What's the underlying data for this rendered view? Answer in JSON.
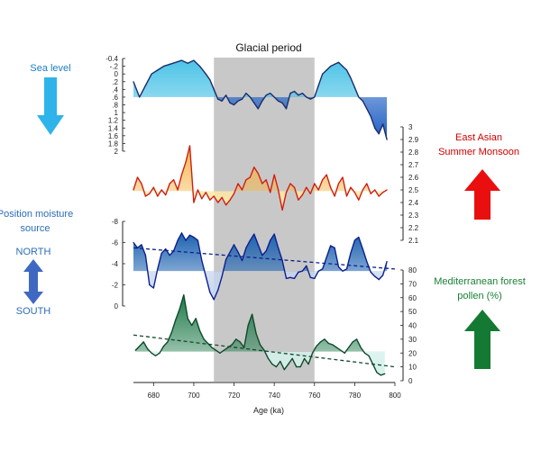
{
  "chart_data": {
    "type": "line",
    "shaded_region": {
      "label": "Glacial period",
      "x_range": [
        710,
        760
      ]
    },
    "x_axis": {
      "label": "Age (ka)",
      "range": [
        670,
        800
      ],
      "ticks": [
        680,
        700,
        720,
        740,
        760,
        780,
        800
      ]
    },
    "panels": [
      {
        "id": "sea-level",
        "title": "Sea level",
        "side": "left",
        "axis": {
          "side": "left",
          "range": [
            -0.4,
            2.0
          ],
          "inverted": true,
          "tick_labels": [
            "-0.4",
            "-.2",
            "0",
            ".2",
            ".4",
            ".6",
            ".8",
            "1",
            "1.2",
            "1.4",
            "1.6",
            "1.8",
            "2"
          ]
        },
        "baseline": 0.6,
        "colors": {
          "above": "#4cc3e6",
          "below": "#1f5fc4",
          "line": "#1a2d6b"
        },
        "series": {
          "x": [
            670,
            673,
            676,
            679,
            682,
            685,
            688,
            691,
            694,
            697,
            700,
            703,
            706,
            708,
            710,
            712,
            714,
            716,
            718,
            720,
            722,
            724,
            726,
            728,
            730,
            732,
            734,
            736,
            738,
            740,
            742,
            744,
            746,
            748,
            750,
            752,
            754,
            756,
            758,
            760,
            762,
            764,
            766,
            768,
            770,
            772,
            774,
            776,
            778,
            780,
            782,
            784,
            786,
            788,
            790,
            792,
            794,
            796
          ],
          "y": [
            0.2,
            0.6,
            0.3,
            0.0,
            -0.1,
            -0.2,
            -0.25,
            -0.3,
            -0.35,
            -0.28,
            -0.35,
            -0.2,
            0.0,
            0.15,
            0.4,
            0.65,
            0.7,
            0.55,
            0.75,
            0.8,
            0.7,
            0.65,
            0.5,
            0.6,
            0.75,
            0.9,
            0.7,
            0.55,
            0.5,
            0.6,
            0.7,
            0.75,
            0.9,
            0.5,
            0.45,
            0.55,
            0.5,
            0.6,
            0.65,
            0.6,
            0.3,
            0.0,
            -0.1,
            -0.2,
            -0.25,
            -0.3,
            -0.2,
            -0.1,
            0.1,
            0.35,
            0.6,
            0.7,
            0.9,
            1.1,
            1.4,
            1.55,
            1.3,
            1.7
          ]
        }
      },
      {
        "id": "monsoon",
        "title": "East Asian Summer Monsoon",
        "side": "right",
        "axis": {
          "side": "right",
          "range": [
            2.1,
            3.0
          ],
          "tick_labels": [
            "3",
            "2.9",
            "2.8",
            "2.7",
            "2.6",
            "2.5",
            "2.4",
            "2.3",
            "2.2",
            "2.1"
          ]
        },
        "baseline": 2.49,
        "colors": {
          "above": "#f5b54a",
          "below": "#ffe9a6",
          "line": "#cf1f10"
        },
        "series": {
          "x": [
            670,
            672,
            674,
            676,
            678,
            680,
            682,
            684,
            686,
            688,
            690,
            692,
            694,
            696,
            698,
            700,
            702,
            704,
            706,
            708,
            710,
            712,
            714,
            716,
            718,
            720,
            722,
            724,
            726,
            728,
            730,
            732,
            734,
            736,
            738,
            740,
            742,
            744,
            746,
            748,
            750,
            752,
            754,
            756,
            758,
            760,
            762,
            764,
            766,
            768,
            770,
            772,
            774,
            776,
            778,
            780,
            782,
            784,
            786,
            788,
            790,
            792,
            794,
            796
          ],
          "y": [
            2.5,
            2.6,
            2.55,
            2.45,
            2.47,
            2.52,
            2.45,
            2.5,
            2.46,
            2.55,
            2.58,
            2.5,
            2.62,
            2.72,
            2.85,
            2.4,
            2.5,
            2.43,
            2.48,
            2.42,
            2.45,
            2.4,
            2.44,
            2.38,
            2.42,
            2.47,
            2.55,
            2.5,
            2.58,
            2.6,
            2.68,
            2.63,
            2.55,
            2.58,
            2.48,
            2.62,
            2.5,
            2.34,
            2.48,
            2.55,
            2.52,
            2.42,
            2.46,
            2.52,
            2.47,
            2.55,
            2.5,
            2.58,
            2.62,
            2.52,
            2.45,
            2.55,
            2.6,
            2.45,
            2.52,
            2.48,
            2.42,
            2.5,
            2.55,
            2.47,
            2.5,
            2.45,
            2.48,
            2.5
          ]
        }
      },
      {
        "id": "moisture",
        "title": "Position moisture source",
        "arrow_top": "NORTH",
        "arrow_bottom": "SOUTH",
        "side": "left",
        "axis": {
          "side": "left",
          "range": [
            0,
            -8
          ],
          "inverted": true,
          "tick_labels": [
            "-8",
            "-6",
            "-4",
            "-2",
            "0"
          ]
        },
        "baseline": -3.3,
        "trend": [
          [
            670,
            -5.5
          ],
          [
            800,
            -3.5
          ]
        ],
        "colors": {
          "above": "#1d62b0",
          "below": "#c7d6ef",
          "line": "#0c1f8f"
        },
        "series": {
          "x": [
            670,
            672,
            674,
            676,
            678,
            680,
            682,
            684,
            686,
            688,
            690,
            692,
            694,
            696,
            698,
            700,
            702,
            704,
            706,
            708,
            710,
            712,
            714,
            716,
            718,
            720,
            722,
            724,
            726,
            728,
            730,
            732,
            734,
            736,
            738,
            740,
            742,
            744,
            746,
            748,
            750,
            752,
            754,
            756,
            758,
            760,
            762,
            764,
            766,
            768,
            770,
            772,
            774,
            776,
            778,
            780,
            782,
            784,
            786,
            788,
            790,
            792,
            794,
            796
          ],
          "y": [
            -6,
            -5.5,
            -5.8,
            -4.8,
            -2,
            -1.7,
            -3.5,
            -5,
            -5.4,
            -4.8,
            -5.2,
            -6.2,
            -6.9,
            -6.2,
            -6.7,
            -6.5,
            -6.2,
            -4.3,
            -2.8,
            -1.3,
            -0.6,
            -1.5,
            -2.8,
            -4.4,
            -5.1,
            -5.8,
            -5.1,
            -4.3,
            -5.5,
            -6.2,
            -6.8,
            -5.8,
            -4.8,
            -5.2,
            -6.2,
            -6.8,
            -5.5,
            -4.3,
            -2.6,
            -2.7,
            -2.6,
            -3.2,
            -3.3,
            -3.8,
            -2.7,
            -2.6,
            -3.3,
            -3.5,
            -4.6,
            -5.7,
            -5.5,
            -3.7,
            -3.3,
            -3.5,
            -5,
            -6.2,
            -6.5,
            -5.4,
            -4.2,
            -3.2,
            -2.8,
            -2.5,
            -2.9,
            -4.2
          ]
        }
      },
      {
        "id": "pollen",
        "title": "Mediterranean forest pollen (%)",
        "side": "right",
        "axis": {
          "side": "right",
          "range": [
            0,
            80
          ],
          "tick_labels": [
            "80",
            "70",
            "60",
            "50",
            "40",
            "30",
            "20",
            "10",
            "0"
          ]
        },
        "baseline": 21,
        "trend": [
          [
            670,
            33
          ],
          [
            800,
            10
          ]
        ],
        "colors": {
          "above": "#1f7a4a",
          "below": "#d6f1ec",
          "line": "#0f4a2a"
        },
        "series": {
          "x": [
            671,
            673,
            675,
            677,
            679,
            681,
            683,
            685,
            687,
            689,
            691,
            693,
            695,
            697,
            699,
            701,
            703,
            705,
            707,
            709,
            711,
            713,
            715,
            717,
            719,
            721,
            723,
            725,
            727,
            729,
            731,
            733,
            735,
            737,
            739,
            741,
            743,
            745,
            747,
            749,
            751,
            753,
            755,
            757,
            759,
            761,
            763,
            765,
            767,
            769,
            771,
            773,
            775,
            777,
            779,
            781,
            783,
            785,
            787,
            789,
            791,
            793,
            795
          ],
          "y": [
            22,
            25,
            28,
            23,
            20,
            18,
            20,
            25,
            28,
            35,
            44,
            52,
            62,
            45,
            40,
            45,
            36,
            30,
            27,
            24,
            22,
            20,
            22,
            24,
            26,
            30,
            28,
            24,
            40,
            48,
            34,
            26,
            22,
            16,
            12,
            10,
            14,
            8,
            12,
            16,
            10,
            10,
            16,
            12,
            20,
            25,
            28,
            30,
            27,
            26,
            24,
            22,
            20,
            24,
            28,
            30,
            24,
            20,
            18,
            12,
            6,
            4,
            5
          ]
        }
      }
    ],
    "annotations": [
      {
        "text": "Sea level",
        "color": "#1c7cc2"
      },
      {
        "text": "East Asian Summer Monsoon",
        "color": "#d10000"
      },
      {
        "text": "Position moisture source",
        "color": "#2b6db7"
      },
      {
        "text": "NORTH",
        "color": "#2b6db7"
      },
      {
        "text": "SOUTH",
        "color": "#2b6db7"
      },
      {
        "text": "Mediterranean forest pollen (%)",
        "color": "#1a7f37"
      }
    ]
  },
  "labels": {
    "glacial": "Glacial period",
    "xaxis": "Age (ka)",
    "sea_level": "Sea level",
    "monsoon_line1": "East Asian",
    "monsoon_line2": "Summer Monsoon",
    "moisture_line1": "Position moisture",
    "moisture_line2": "source",
    "north": "NORTH",
    "south": "SOUTH",
    "pollen_line1": "Mediterranean forest",
    "pollen_line2": "pollen (%)"
  },
  "colors": {
    "shade": "#c8c8c8",
    "sea_text": "#1c7cc2",
    "sea_arrow": "#2eb3ea",
    "monsoon_text": "#d10000",
    "monsoon_arrow": "#ea0f0f",
    "moisture_text": "#2b6db7",
    "moisture_arrow": "#3f68c2",
    "pollen_text": "#1a7f37",
    "pollen_arrow": "#147a33"
  }
}
